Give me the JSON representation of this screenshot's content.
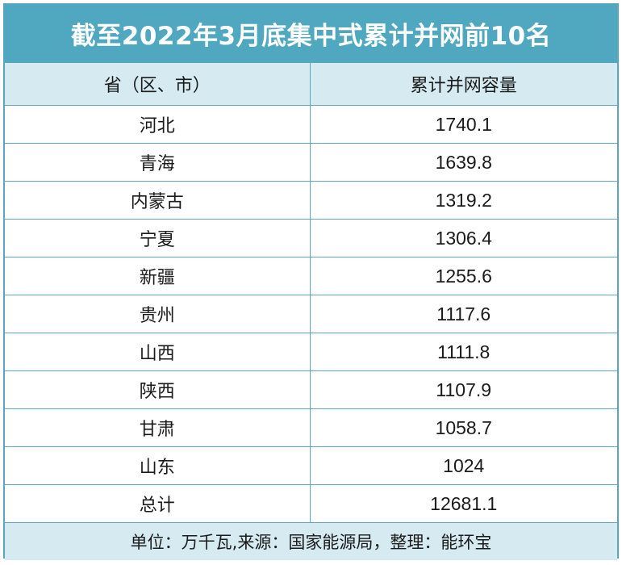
{
  "title": "截至2022年3月底集中式累计并网前10名",
  "headers": {
    "region": "省（区、市）",
    "capacity": "累计并网容量"
  },
  "rows": [
    {
      "region": "河北",
      "capacity": "1740.1"
    },
    {
      "region": "青海",
      "capacity": "1639.8"
    },
    {
      "region": "内蒙古",
      "capacity": "1319.2"
    },
    {
      "region": "宁夏",
      "capacity": "1306.4"
    },
    {
      "region": "新疆",
      "capacity": "1255.6"
    },
    {
      "region": "贵州",
      "capacity": "1117.6"
    },
    {
      "region": "山西",
      "capacity": "1111.8"
    },
    {
      "region": "陕西",
      "capacity": "1107.9"
    },
    {
      "region": "甘肃",
      "capacity": "1058.7"
    },
    {
      "region": "山东",
      "capacity": "1024"
    }
  ],
  "total": {
    "region": "总计",
    "capacity": "12681.1"
  },
  "note": "单位：万千瓦,来源：国家能源局，整理：能环宝",
  "colors": {
    "title_bg": "#4fa8c0",
    "header_bg": "#d6ebf1",
    "border": "#5aa6ba"
  }
}
